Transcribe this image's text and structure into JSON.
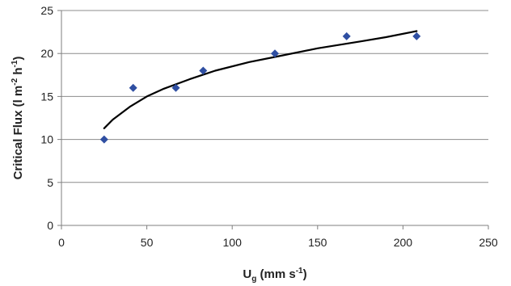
{
  "chart_data": {
    "type": "scatter",
    "xlabel": {
      "base": "U",
      "subscript": "g",
      "rest": " (mm s",
      "sup": "-1",
      "close": ")"
    },
    "ylabel": {
      "text1": "Critical Flux (l m",
      "sup1": "-2",
      "text2": " h",
      "sup2": "-1",
      "close": ")"
    },
    "xlim": [
      0,
      250
    ],
    "ylim": [
      0,
      25
    ],
    "xticks": [
      0,
      50,
      100,
      150,
      200,
      250
    ],
    "yticks": [
      0,
      5,
      10,
      15,
      20,
      25
    ],
    "grid": "horizontal",
    "series": [
      {
        "marker": "diamond",
        "color": "#2f4fa2",
        "x": [
          25,
          42,
          67,
          83,
          125,
          167,
          208
        ],
        "y": [
          10,
          16,
          16,
          18,
          20,
          22,
          22
        ]
      }
    ],
    "trendline": {
      "type": "logarithmic",
      "color": "#000000",
      "x": [
        25,
        30,
        40,
        50,
        60,
        75,
        90,
        110,
        125,
        150,
        175,
        190,
        208
      ],
      "y": [
        11.3,
        12.3,
        13.8,
        15.0,
        15.9,
        17.0,
        18.0,
        19.0,
        19.6,
        20.6,
        21.4,
        21.9,
        22.6
      ]
    }
  }
}
